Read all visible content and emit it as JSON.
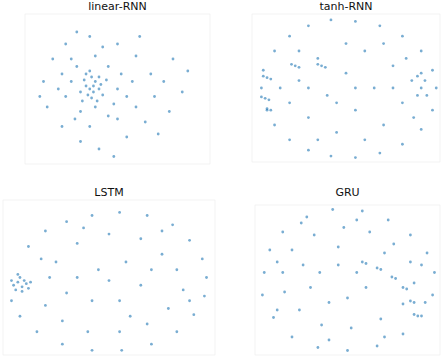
{
  "chart_data": [
    {
      "type": "scatter",
      "title": "linear-RNN",
      "color": "#1f77b4",
      "tick_labels": false,
      "xlim": [
        0,
        100
      ],
      "ylim": [
        0,
        100
      ],
      "x": [
        35,
        37,
        33,
        38,
        36,
        40,
        34,
        39,
        32,
        41,
        36,
        30,
        42,
        38,
        35,
        44,
        31,
        37,
        33,
        40,
        25,
        28,
        45,
        50,
        48,
        45,
        30,
        22,
        27,
        52,
        55,
        38,
        25,
        20,
        58,
        50,
        35,
        42,
        60,
        18,
        10,
        12,
        15,
        20,
        30,
        40,
        55,
        65,
        70,
        68,
        60,
        50,
        35,
        22,
        62,
        75,
        78,
        85,
        88,
        8,
        48,
        72,
        28,
        80
      ],
      "y": [
        50,
        48,
        52,
        55,
        44,
        50,
        46,
        42,
        56,
        53,
        58,
        48,
        46,
        38,
        62,
        56,
        42,
        52,
        60,
        58,
        55,
        65,
        65,
        50,
        40,
        32,
        35,
        45,
        30,
        60,
        45,
        72,
        70,
        60,
        55,
        30,
        25,
        78,
        38,
        50,
        55,
        38,
        70,
        25,
        15,
        10,
        18,
        28,
        45,
        60,
        72,
        80,
        85,
        80,
        85,
        55,
        35,
        48,
        62,
        45,
        5,
        20,
        88,
        70
      ]
    },
    {
      "type": "scatter",
      "title": "tanh-RNN",
      "color": "#1f77b4",
      "tick_labels": false,
      "xlim": [
        0,
        100
      ],
      "ylim": [
        0,
        100
      ],
      "x": [
        5,
        8,
        12,
        20,
        30,
        42,
        55,
        68,
        80,
        90,
        96,
        98,
        96,
        90,
        80,
        68,
        55,
        42,
        30,
        20,
        12,
        6,
        20,
        25,
        30,
        35,
        40,
        45,
        50,
        55,
        60,
        65,
        70,
        75,
        80,
        85,
        88,
        90,
        86,
        82,
        15,
        25,
        35,
        50,
        60,
        70,
        45,
        55,
        30,
        75,
        6,
        8,
        10,
        5,
        7,
        9,
        8,
        10,
        21,
        23,
        25,
        35,
        37,
        39,
        92,
        90,
        93,
        88
      ],
      "y": [
        50,
        35,
        25,
        15,
        8,
        4,
        3,
        6,
        12,
        22,
        35,
        50,
        62,
        75,
        85,
        92,
        95,
        96,
        92,
        85,
        75,
        62,
        40,
        55,
        30,
        70,
        45,
        20,
        60,
        35,
        75,
        50,
        25,
        65,
        40,
        55,
        45,
        60,
        30,
        70,
        50,
        75,
        15,
        80,
        15,
        80,
        40,
        50,
        50,
        50,
        58,
        57,
        56,
        44,
        43,
        42,
        36,
        35,
        66,
        65,
        64,
        66,
        65,
        64,
        55,
        50,
        45,
        58
      ]
    },
    {
      "type": "scatter",
      "title": "LSTM",
      "color": "#1f77b4",
      "tick_labels": false,
      "xlim": [
        0,
        100
      ],
      "ylim": [
        0,
        100
      ],
      "x": [
        5,
        7,
        9,
        11,
        8,
        6,
        10,
        12,
        4,
        9,
        13,
        7,
        12,
        20,
        30,
        42,
        55,
        68,
        80,
        88,
        94,
        96,
        95,
        90,
        82,
        70,
        56,
        42,
        28,
        16,
        8,
        4,
        25,
        35,
        50,
        65,
        75,
        82,
        85,
        78,
        68,
        55,
        40,
        28,
        20,
        30,
        45,
        58,
        65,
        55,
        42,
        35,
        70,
        50,
        22,
        18,
        60,
        75,
        38,
        88
      ],
      "y": [
        45,
        47,
        44,
        46,
        50,
        42,
        48,
        43,
        48,
        41,
        47,
        52,
        70,
        80,
        86,
        90,
        92,
        90,
        84,
        74,
        62,
        50,
        38,
        26,
        15,
        7,
        3,
        3,
        7,
        15,
        25,
        35,
        60,
        72,
        78,
        75,
        65,
        55,
        42,
        30,
        20,
        15,
        15,
        22,
        32,
        40,
        55,
        60,
        45,
        35,
        35,
        50,
        55,
        48,
        50,
        62,
        25,
        80,
        82,
        35
      ]
    },
    {
      "type": "scatter",
      "title": "GRU",
      "color": "#1f77b4",
      "tick_labels": false,
      "xlim": [
        0,
        100
      ],
      "ylim": [
        0,
        100
      ],
      "x": [
        5,
        8,
        15,
        28,
        42,
        58,
        72,
        84,
        93,
        97,
        96,
        90,
        80,
        66,
        50,
        34,
        20,
        10,
        4,
        15,
        20,
        32,
        48,
        62,
        75,
        84,
        86,
        80,
        68,
        52,
        36,
        24,
        16,
        30,
        35,
        45,
        55,
        60,
        50,
        40,
        58,
        60,
        66,
        68,
        74,
        76,
        80,
        82,
        84,
        86,
        86,
        88,
        12,
        25,
        55,
        90,
        92,
        70,
        40,
        12,
        26,
        70,
        45
      ],
      "y": [
        55,
        70,
        82,
        92,
        97,
        96,
        90,
        80,
        68,
        55,
        40,
        26,
        14,
        6,
        3,
        5,
        12,
        25,
        40,
        55,
        70,
        80,
        85,
        82,
        74,
        62,
        48,
        34,
        24,
        18,
        20,
        30,
        42,
        45,
        55,
        60,
        55,
        45,
        38,
        35,
        62,
        61,
        58,
        57,
        52,
        51,
        45,
        44,
        36,
        35,
        27,
        26,
        62,
        88,
        90,
        60,
        35,
        12,
        10,
        30,
        60,
        68,
        72
      ]
    }
  ]
}
